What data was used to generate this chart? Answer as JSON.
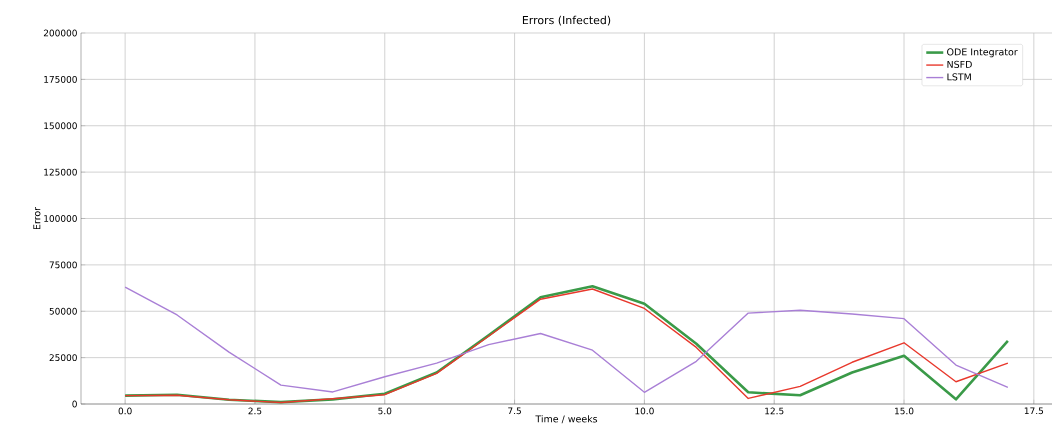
{
  "chart_data": {
    "type": "line",
    "title": "Errors (Infected)",
    "xlabel": "Time / weeks",
    "ylabel": "Error",
    "x": [
      0,
      1,
      2,
      3,
      4,
      5,
      6,
      7,
      8,
      9,
      10,
      11,
      12,
      13,
      14,
      15,
      16,
      17
    ],
    "series": [
      {
        "name": "ODE Integrator",
        "color": "#3a9a48",
        "values": [
          4500,
          5000,
          2300,
          1000,
          2500,
          5500,
          17000,
          37000,
          57500,
          63500,
          54000,
          32500,
          6300,
          4700,
          17000,
          26000,
          2500,
          34000
        ]
      },
      {
        "name": "NSFD",
        "color": "#e8382c",
        "values": [
          4500,
          4700,
          2300,
          800,
          2800,
          5000,
          16500,
          36500,
          56500,
          62000,
          51500,
          30500,
          3000,
          9500,
          22500,
          33000,
          12000,
          22000
        ]
      },
      {
        "name": "LSTM",
        "color": "#a97fd6",
        "values": [
          63000,
          48000,
          28000,
          10200,
          6500,
          14700,
          22000,
          32000,
          38000,
          29000,
          6300,
          23000,
          49000,
          50500,
          48500,
          46000,
          21000,
          9000
        ]
      }
    ],
    "xlim": [
      -0.85,
      17.85
    ],
    "ylim": [
      0,
      200000
    ],
    "xticks": [
      {
        "value": 0,
        "label": "0.0"
      },
      {
        "value": 2.5,
        "label": "2.5"
      },
      {
        "value": 5,
        "label": "5.0"
      },
      {
        "value": 7.5,
        "label": "7.5"
      },
      {
        "value": 10,
        "label": "10.0"
      },
      {
        "value": 12.5,
        "label": "12.5"
      },
      {
        "value": 15,
        "label": "15.0"
      },
      {
        "value": 17.5,
        "label": "17.5"
      }
    ],
    "yticks": [
      0,
      25000,
      50000,
      75000,
      100000,
      125000,
      150000,
      175000,
      200000
    ],
    "grid": true,
    "legend": "top right",
    "marker": "none",
    "line_style": "solid"
  }
}
